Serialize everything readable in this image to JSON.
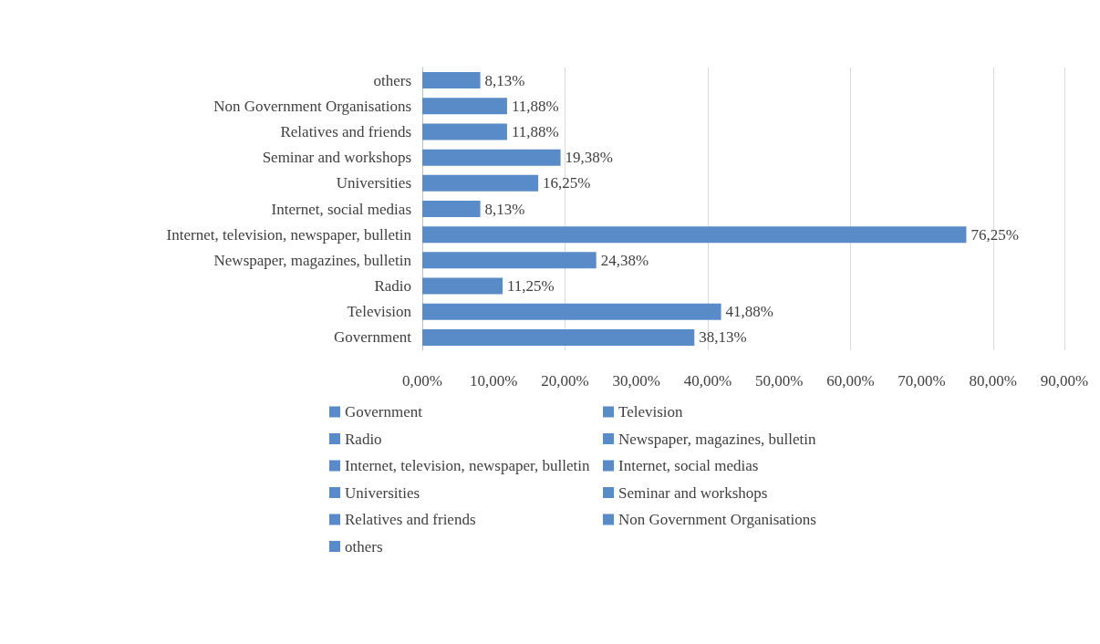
{
  "chart_data": {
    "type": "bar",
    "orientation": "horizontal",
    "stacked": true,
    "categories": [
      "others",
      "Non Government Organisations",
      "Relatives and friends",
      "Seminar and workshops",
      "Universities",
      "Internet, social medias",
      "Internet, television, newspaper, bulletin",
      "Newspaper, magazines, bulletin",
      "Radio",
      "Television",
      "Government"
    ],
    "series": [
      {
        "name": "Government",
        "color": "#5a8bc9",
        "values": [
          null,
          null,
          null,
          null,
          null,
          null,
          null,
          null,
          null,
          null,
          38.13
        ],
        "value_labels": [
          null,
          null,
          null,
          null,
          null,
          null,
          null,
          null,
          null,
          null,
          "38,13%"
        ]
      },
      {
        "name": "Television",
        "color": "#5a8bc9",
        "values": [
          null,
          null,
          null,
          null,
          null,
          null,
          null,
          null,
          null,
          41.88,
          null
        ],
        "value_labels": [
          null,
          null,
          null,
          null,
          null,
          null,
          null,
          null,
          null,
          "41,88%",
          null
        ]
      },
      {
        "name": "Radio",
        "color": "#5a8bc9",
        "values": [
          null,
          null,
          null,
          null,
          null,
          null,
          null,
          null,
          11.25,
          null,
          null
        ],
        "value_labels": [
          null,
          null,
          null,
          null,
          null,
          null,
          null,
          null,
          "11,25%",
          null,
          null
        ]
      },
      {
        "name": "Newspaper, magazines, bulletin",
        "color": "#5a8bc9",
        "values": [
          null,
          null,
          null,
          null,
          null,
          null,
          null,
          24.38,
          null,
          null,
          null
        ],
        "value_labels": [
          null,
          null,
          null,
          null,
          null,
          null,
          null,
          "24,38%",
          null,
          null,
          null
        ]
      },
      {
        "name": "Internet, television, newspaper, bulletin",
        "color": "#5a8bc9",
        "values": [
          null,
          null,
          null,
          null,
          null,
          null,
          76.25,
          null,
          null,
          null,
          null
        ],
        "value_labels": [
          null,
          null,
          null,
          null,
          null,
          null,
          "76,25%",
          null,
          null,
          null,
          null
        ]
      },
      {
        "name": "Internet, social medias",
        "color": "#5a8bc9",
        "values": [
          null,
          null,
          null,
          null,
          null,
          8.13,
          null,
          null,
          null,
          null,
          null
        ],
        "value_labels": [
          null,
          null,
          null,
          null,
          null,
          "8,13%",
          null,
          null,
          null,
          null,
          null
        ]
      },
      {
        "name": "Universities",
        "color": "#5a8bc9",
        "values": [
          null,
          null,
          null,
          null,
          16.25,
          null,
          null,
          null,
          null,
          null,
          null
        ],
        "value_labels": [
          null,
          null,
          null,
          null,
          "16,25%",
          null,
          null,
          null,
          null,
          null,
          null
        ]
      },
      {
        "name": "Seminar and workshops",
        "color": "#5a8bc9",
        "values": [
          null,
          null,
          null,
          19.38,
          null,
          null,
          null,
          null,
          null,
          null,
          null
        ],
        "value_labels": [
          null,
          null,
          null,
          "19,38%",
          null,
          null,
          null,
          null,
          null,
          null,
          null
        ]
      },
      {
        "name": "Relatives and friends",
        "color": "#5a8bc9",
        "values": [
          null,
          null,
          11.88,
          null,
          null,
          null,
          null,
          null,
          null,
          null,
          null
        ],
        "value_labels": [
          null,
          null,
          "11,88%",
          null,
          null,
          null,
          null,
          null,
          null,
          null,
          null
        ]
      },
      {
        "name": "Non Government Organisations",
        "color": "#5a8bc9",
        "values": [
          null,
          11.88,
          null,
          null,
          null,
          null,
          null,
          null,
          null,
          null,
          null
        ],
        "value_labels": [
          null,
          "11,88%",
          null,
          null,
          null,
          null,
          null,
          null,
          null,
          null,
          null
        ]
      },
      {
        "name": "others",
        "color": "#5a8bc9",
        "values": [
          8.13,
          null,
          null,
          null,
          null,
          null,
          null,
          null,
          null,
          null,
          null
        ],
        "value_labels": [
          "8,13%",
          null,
          null,
          null,
          null,
          null,
          null,
          null,
          null,
          null,
          null
        ]
      }
    ],
    "xlim": [
      0,
      90
    ],
    "xticks": [
      {
        "value": 0,
        "label": "0,00%"
      },
      {
        "value": 10,
        "label": "10,00%"
      },
      {
        "value": 20,
        "label": "20,00%"
      },
      {
        "value": 30,
        "label": "30,00%"
      },
      {
        "value": 40,
        "label": "40,00%"
      },
      {
        "value": 50,
        "label": "50,00%"
      },
      {
        "value": 60,
        "label": "60,00%"
      },
      {
        "value": 70,
        "label": "70,00%"
      },
      {
        "value": 80,
        "label": "80,00%"
      },
      {
        "value": 90,
        "label": "90,00%"
      }
    ],
    "grid": "x",
    "legend": "bottom"
  }
}
